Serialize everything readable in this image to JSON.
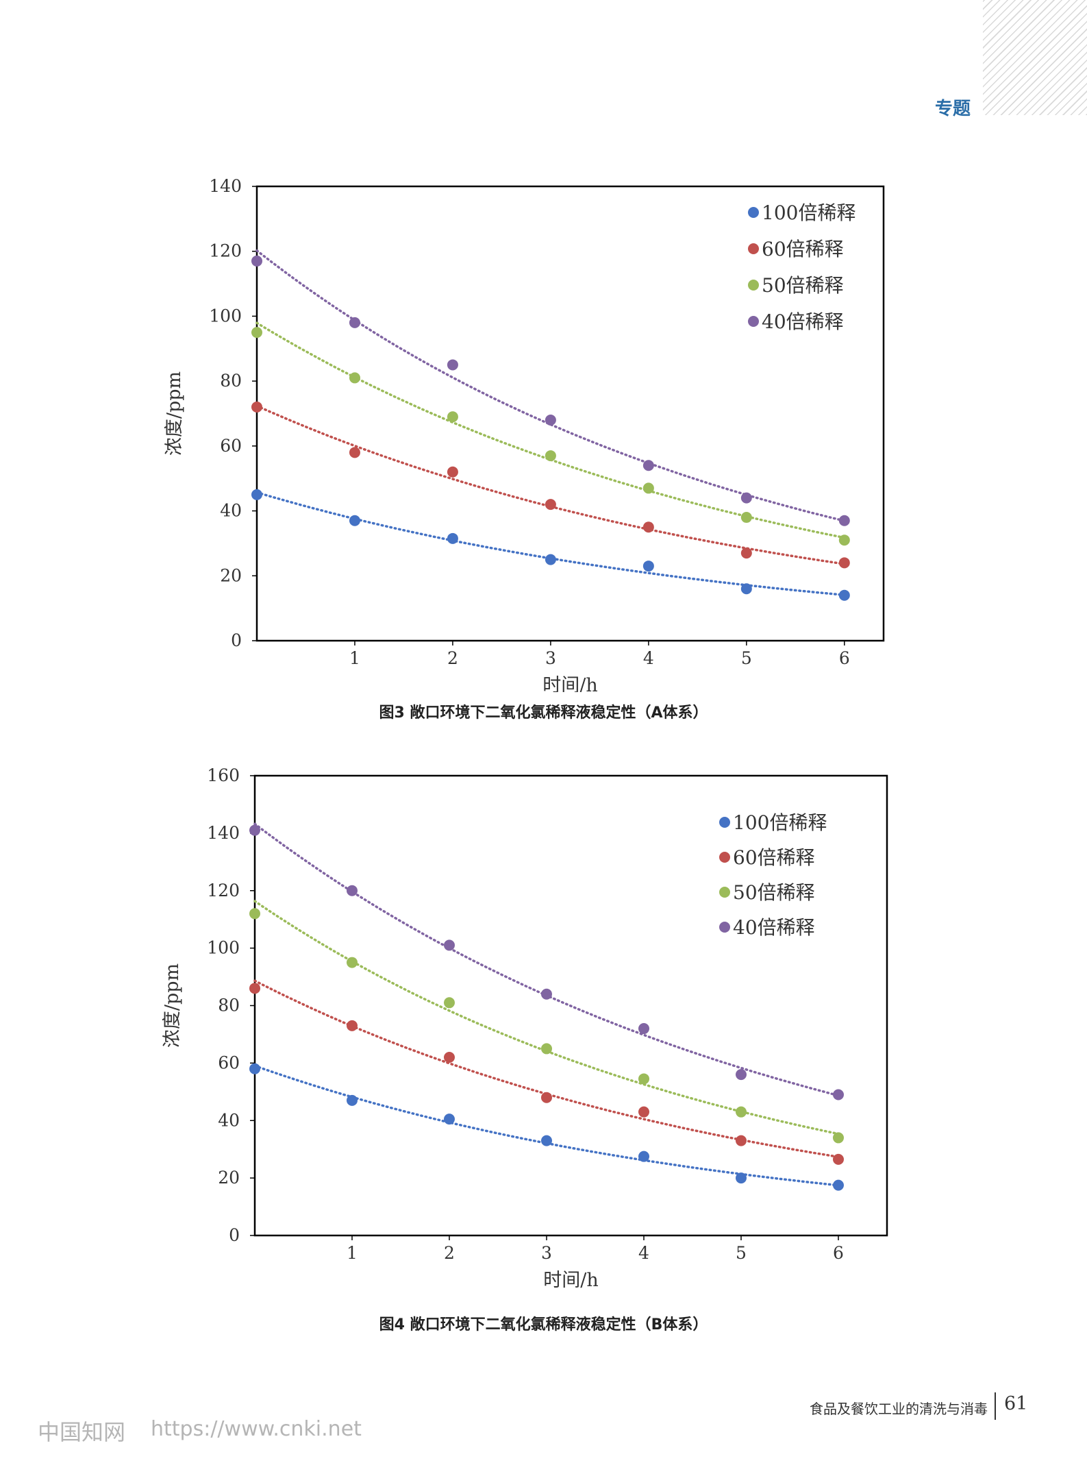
{
  "header": {
    "section_tag": "专题"
  },
  "charts": [
    {
      "caption": "图3  敞口环境下二氧化氯稀释液稳定性（A体系）"
    },
    {
      "caption": "图4  敞口环境下二氧化氯稀释液稳定性（B体系）"
    }
  ],
  "chart_data": [
    {
      "type": "scatter",
      "trendline": "exponential, dotted",
      "xlabel": "时间/h",
      "ylabel": "浓度/ppm",
      "xlim": [
        0,
        6.4
      ],
      "ylim": [
        0,
        140
      ],
      "xticks": [
        1,
        2,
        3,
        4,
        5,
        6
      ],
      "yticks": [
        0,
        20,
        40,
        60,
        80,
        100,
        120,
        140
      ],
      "grid": false,
      "legend_position": "top-right",
      "x": [
        0,
        1,
        2,
        3,
        4,
        5,
        6
      ],
      "series": [
        {
          "name": "100倍稀释",
          "color": "#4472c4",
          "values": [
            45,
            37,
            31.5,
            25,
            23,
            16,
            14
          ]
        },
        {
          "name": "60倍稀释",
          "color": "#c0504d",
          "values": [
            72,
            58,
            52,
            42,
            35,
            27,
            24
          ]
        },
        {
          "name": "50倍稀释",
          "color": "#9bbb59",
          "values": [
            95,
            81,
            69,
            57,
            47,
            38,
            31
          ]
        },
        {
          "name": "40倍稀释",
          "color": "#8064a2",
          "values": [
            117,
            98,
            85,
            68,
            54,
            44,
            37
          ]
        }
      ]
    },
    {
      "type": "scatter",
      "trendline": "exponential, dotted",
      "xlabel": "时间/h",
      "ylabel": "浓度/ppm",
      "xlim": [
        0,
        6.5
      ],
      "ylim": [
        0,
        160
      ],
      "xticks": [
        1,
        2,
        3,
        4,
        5,
        6
      ],
      "yticks": [
        0,
        20,
        40,
        60,
        80,
        100,
        120,
        140,
        160
      ],
      "grid": false,
      "legend_position": "top-right",
      "x": [
        0,
        1,
        2,
        3,
        4,
        5,
        6
      ],
      "series": [
        {
          "name": "100倍稀释",
          "color": "#4472c4",
          "values": [
            58,
            47,
            40.5,
            33,
            27.5,
            20,
            17.5
          ]
        },
        {
          "name": "60倍稀释",
          "color": "#c0504d",
          "values": [
            86,
            73,
            62,
            48,
            43,
            33,
            26.5
          ]
        },
        {
          "name": "50倍稀释",
          "color": "#9bbb59",
          "values": [
            112,
            95,
            81,
            65,
            54.5,
            43,
            34
          ]
        },
        {
          "name": "40倍稀释",
          "color": "#8064a2",
          "values": [
            141,
            120,
            101,
            84,
            72,
            56,
            49
          ]
        }
      ]
    }
  ],
  "footer": {
    "journal": "食品及餐饮工业的清洗与消毒",
    "page_number": "61"
  },
  "watermark": {
    "site_name": "中国知网",
    "url": "https://www.cnki.net"
  }
}
